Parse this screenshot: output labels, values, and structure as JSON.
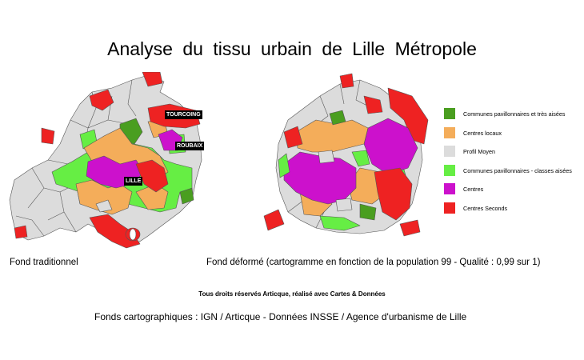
{
  "title": "Analyse du tissu urbain de Lille Métropole",
  "colors": {
    "communes_aisees": "#4a9e20",
    "centres_locaux": "#f4ad5a",
    "profil_moyen": "#dcdcdc",
    "communes_classes_aisees": "#66ee44",
    "centres": "#cc11cc",
    "centres_seconds": "#ee2222",
    "border": "#555555"
  },
  "legend": [
    {
      "label": "Communes pavillonnaires et très aisées",
      "color": "#4a9e20"
    },
    {
      "label": "Centres locaux",
      "color": "#f4ad5a"
    },
    {
      "label": "Profil Moyen",
      "color": "#dcdcdc"
    },
    {
      "label": "Communes pavillonnaires - classes aisées",
      "color": "#66ee44"
    },
    {
      "label": "Centres",
      "color": "#cc11cc"
    },
    {
      "label": "Centres Seconds",
      "color": "#ee2222"
    }
  ],
  "city_labels": {
    "tourcoing": "TOURCOING",
    "roubaix": "ROUBAIX",
    "lille": "LILLE"
  },
  "captions": {
    "traditional": "Fond traditionnel",
    "deformed": "Fond déformé (cartogramme en fonction de la population 99 - Qualité : 0,99 sur 1)"
  },
  "rights": "Tous droits réservés Articque, réalisé avec Cartes & Données",
  "sources": "Fonds cartographiques : IGN / Articque - Données INSSE / Agence d'urbanisme de Lille"
}
